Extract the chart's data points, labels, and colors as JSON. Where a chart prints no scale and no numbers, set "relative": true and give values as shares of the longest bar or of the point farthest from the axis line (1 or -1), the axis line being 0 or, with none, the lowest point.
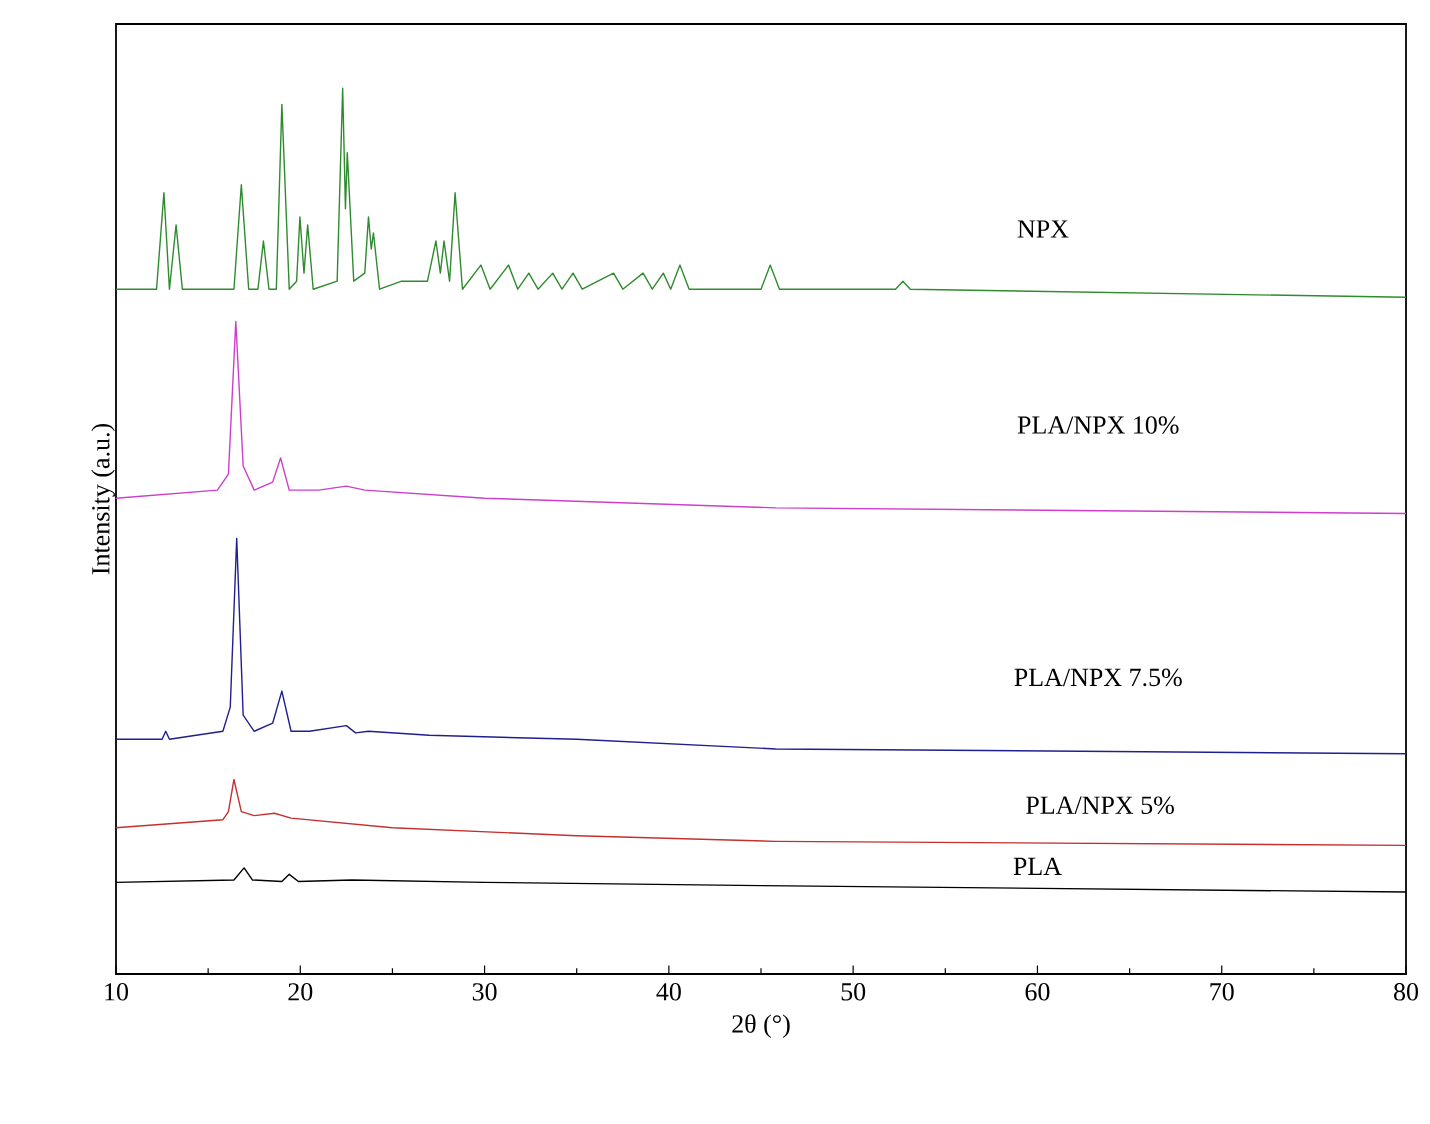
{
  "chart_data": {
    "type": "line",
    "relative": true,
    "xlabel": "2θ (°)",
    "ylabel": "Intensity (a.u.)",
    "xlim": [
      10,
      80
    ],
    "xticks": [
      10,
      20,
      30,
      40,
      50,
      60,
      70,
      80
    ],
    "tick_labels": "x",
    "grid": false,
    "series": [
      {
        "name": "NPX",
        "color": "#2e8b2e",
        "x": [
          10,
          12.2,
          12.6,
          12.9,
          13.26,
          13.6,
          16.4,
          16.8,
          17.2,
          17.7,
          18.0,
          18.3,
          18.7,
          19.0,
          19.4,
          19.8,
          19.98,
          20.2,
          20.4,
          20.7,
          22.0,
          22.3,
          22.45,
          22.55,
          22.9,
          23.5,
          23.7,
          23.85,
          23.97,
          24.3,
          25.5,
          26.9,
          27.36,
          27.6,
          27.8,
          28.1,
          28.4,
          28.8,
          29.8,
          30.3,
          31.3,
          31.8,
          32.4,
          32.9,
          33.7,
          34.2,
          34.8,
          35.3,
          37.0,
          37.5,
          38.6,
          39.1,
          39.7,
          40.1,
          40.6,
          41.1,
          45.0,
          45.5,
          46.0,
          52.3,
          52.7,
          53.1,
          80
        ],
        "values": [
          0.75,
          0.75,
          0.87,
          0.75,
          0.83,
          0.75,
          0.75,
          0.88,
          0.75,
          0.75,
          0.81,
          0.75,
          0.75,
          0.98,
          0.75,
          0.76,
          0.84,
          0.77,
          0.83,
          0.75,
          0.76,
          1.0,
          0.85,
          0.92,
          0.76,
          0.77,
          0.84,
          0.8,
          0.82,
          0.75,
          0.76,
          0.76,
          0.81,
          0.77,
          0.81,
          0.76,
          0.87,
          0.75,
          0.78,
          0.75,
          0.78,
          0.75,
          0.77,
          0.75,
          0.77,
          0.75,
          0.77,
          0.75,
          0.77,
          0.75,
          0.77,
          0.75,
          0.77,
          0.75,
          0.78,
          0.75,
          0.75,
          0.78,
          0.75,
          0.75,
          0.76,
          0.75,
          0.74
        ]
      },
      {
        "name": "PLA/NPX 10%",
        "color": "#cc3fcc",
        "x": [
          10,
          15.5,
          16.1,
          16.5,
          16.9,
          17.5,
          18.5,
          18.93,
          19.4,
          21,
          22.5,
          23.5,
          30,
          45.8,
          80
        ],
        "values": [
          0.49,
          0.5,
          0.52,
          0.71,
          0.53,
          0.5,
          0.51,
          0.54,
          0.5,
          0.5,
          0.505,
          0.5,
          0.49,
          0.478,
          0.471
        ]
      },
      {
        "name": "PLA/NPX 7.5%",
        "color": "#1f1f8f",
        "x": [
          10,
          12.5,
          12.7,
          12.9,
          15.8,
          16.2,
          16.55,
          16.9,
          17.5,
          18.5,
          19.0,
          19.5,
          20.5,
          22.5,
          23.0,
          23.7,
          27,
          35,
          45.8,
          80
        ],
        "values": [
          0.19,
          0.19,
          0.2,
          0.19,
          0.2,
          0.23,
          0.44,
          0.22,
          0.2,
          0.21,
          0.25,
          0.2,
          0.2,
          0.207,
          0.198,
          0.2,
          0.195,
          0.19,
          0.178,
          0.172
        ]
      },
      {
        "name": "PLA/NPX 5%",
        "color": "#c43030",
        "x": [
          10,
          15.8,
          16.1,
          16.4,
          16.8,
          17.5,
          18.6,
          19.5,
          25,
          35,
          45.8,
          80
        ],
        "values": [
          0.08,
          0.09,
          0.1,
          0.14,
          0.1,
          0.095,
          0.098,
          0.092,
          0.08,
          0.07,
          0.063,
          0.058
        ]
      },
      {
        "name": "PLA",
        "color": "#000000",
        "x": [
          10,
          16.4,
          16.95,
          17.4,
          19.0,
          19.4,
          19.9,
          22.8,
          30,
          45,
          80
        ],
        "values": [
          0.012,
          0.015,
          0.03,
          0.015,
          0.013,
          0.022,
          0.013,
          0.015,
          0.012,
          0.008,
          0.0
        ]
      }
    ]
  }
}
